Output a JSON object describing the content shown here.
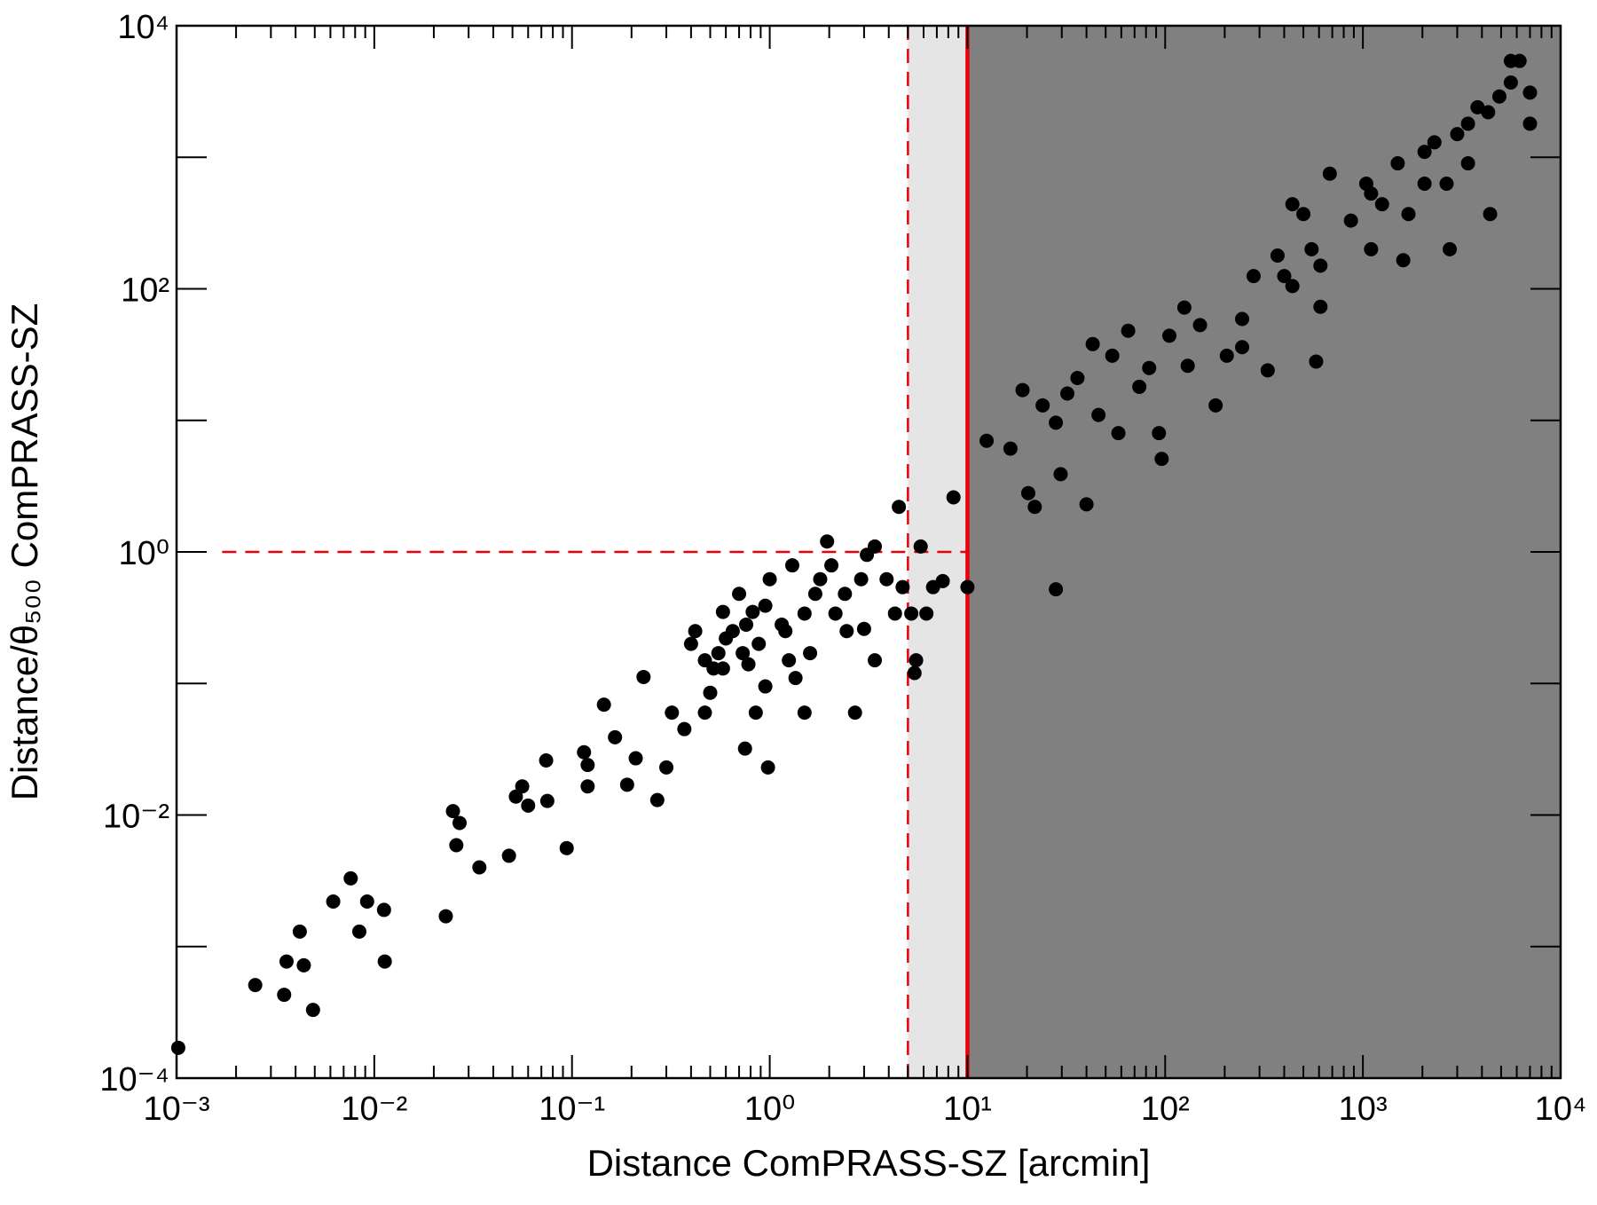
{
  "chart_data": {
    "type": "scatter",
    "xlabel": "Distance ComPRASS-SZ [arcmin]",
    "ylabel": "Distance/θ₅₀₀ ComPRASS-SZ",
    "xscale": "log",
    "yscale": "log",
    "xlim": [
      0.001,
      10000
    ],
    "ylim": [
      0.0001,
      10000
    ],
    "xticks": [
      {
        "value": 0.001,
        "label": "10⁻³"
      },
      {
        "value": 0.01,
        "label": "10⁻²"
      },
      {
        "value": 0.1,
        "label": "10⁻¹"
      },
      {
        "value": 1,
        "label": "10⁰"
      },
      {
        "value": 10,
        "label": "10¹"
      },
      {
        "value": 100,
        "label": "10²"
      },
      {
        "value": 1000,
        "label": "10³"
      },
      {
        "value": 10000,
        "label": "10⁴"
      }
    ],
    "yticks": [
      {
        "value": 0.0001,
        "label": "10⁻⁴"
      },
      {
        "value": 0.01,
        "label": "10⁻²"
      },
      {
        "value": 1,
        "label": "10⁰"
      },
      {
        "value": 100,
        "label": "10²"
      },
      {
        "value": 10000,
        "label": "10⁴"
      }
    ],
    "x_minor_ticks": [
      0.002,
      0.003,
      0.004,
      0.005,
      0.006,
      0.007,
      0.008,
      0.009,
      0.02,
      0.03,
      0.04,
      0.05,
      0.06,
      0.07,
      0.08,
      0.09,
      0.2,
      0.3,
      0.4,
      0.5,
      0.6,
      0.7,
      0.8,
      0.9,
      2,
      3,
      4,
      5,
      6,
      7,
      8,
      9,
      20,
      30,
      40,
      50,
      60,
      70,
      80,
      90,
      200,
      300,
      400,
      500,
      600,
      700,
      800,
      900,
      2000,
      3000,
      4000,
      5000,
      6000,
      7000,
      8000,
      9000
    ],
    "y_unlabeled_ticks": [
      0.001,
      0.1,
      10,
      1000
    ],
    "regions": [
      {
        "x0": 5,
        "x1": 10,
        "color": "#e5e5e5"
      },
      {
        "x0": 10,
        "x1": 10000,
        "color": "#808080"
      }
    ],
    "vlines": [
      {
        "x": 5,
        "color": "#e8000b",
        "dash": true
      },
      {
        "x": 10,
        "color": "#e8000b",
        "dash": false
      }
    ],
    "hlines": [
      {
        "y": 1,
        "x0": 0.0017,
        "x1": 10,
        "color": "#e8000b",
        "dash": true
      }
    ],
    "color": "#000000",
    "x": [
      0.00102,
      0.0025,
      0.0035,
      0.0036,
      0.0044,
      0.0042,
      0.0049,
      0.0062,
      0.0076,
      0.0084,
      0.0092,
      0.0112,
      0.0113,
      0.023,
      0.025,
      0.027,
      0.026,
      0.034,
      0.048,
      0.052,
      0.056,
      0.06,
      0.075,
      0.074,
      0.094,
      0.115,
      0.12,
      0.12,
      0.145,
      0.165,
      0.19,
      0.21,
      0.23,
      0.27,
      0.3,
      0.32,
      0.4,
      0.52,
      0.75,
      0.98,
      0.85,
      0.58,
      0.65,
      0.73,
      0.76,
      0.95,
      1.2,
      1.25,
      1.35,
      1.5,
      1.7,
      1.8,
      2.05,
      2.15,
      2.45,
      2.7,
      2.9,
      3.1,
      3.4,
      3.9,
      4.3,
      4.7,
      5.2,
      5.8,
      6.2,
      5.5,
      5.4,
      6.7,
      8.5,
      7.5,
      4.5,
      1.95,
      0.7,
      0.47,
      0.42,
      0.5,
      0.95,
      1.5,
      0.47,
      0.37,
      0.58,
      0.82,
      1.0,
      1.3,
      2.4,
      3.0,
      3.4,
      0.88,
      0.6,
      1.6,
      0.78,
      1.15,
      0.55,
      10.0,
      12.5,
      16.5,
      20.3,
      21.9,
      28,
      29.6,
      40,
      19,
      24,
      28,
      32,
      36,
      43,
      46,
      54,
      58,
      65,
      74,
      83,
      93,
      96,
      105,
      125,
      150,
      180,
      205,
      245,
      280,
      330,
      370,
      440,
      550,
      580,
      610,
      440,
      870,
      1040,
      1100,
      1250,
      1500,
      1700,
      2050,
      2300,
      2650,
      3000,
      3400,
      3800,
      4300,
      4900,
      5600,
      6200,
      7000,
      4400,
      2750,
      1600,
      680,
      500,
      400,
      245,
      130,
      610,
      1100,
      2050,
      3400,
      7000,
      5600
    ],
    "y": [
      0.00017,
      0.00051,
      0.00043,
      0.00077,
      0.00072,
      0.0013,
      0.00033,
      0.0022,
      0.0033,
      0.0013,
      0.0022,
      0.0019,
      0.00077,
      0.0017,
      0.0107,
      0.0087,
      0.0059,
      0.004,
      0.0049,
      0.0138,
      0.0165,
      0.0118,
      0.0128,
      0.026,
      0.0056,
      0.03,
      0.024,
      0.0165,
      0.069,
      0.039,
      0.017,
      0.027,
      0.112,
      0.013,
      0.023,
      0.06,
      0.2,
      0.13,
      0.032,
      0.023,
      0.06,
      0.35,
      0.25,
      0.17,
      0.28,
      0.39,
      0.25,
      0.15,
      0.11,
      0.34,
      0.48,
      0.62,
      0.79,
      0.34,
      0.25,
      0.06,
      0.62,
      0.95,
      1.1,
      0.62,
      0.34,
      0.54,
      0.34,
      1.1,
      0.34,
      0.15,
      0.12,
      0.54,
      2.6,
      0.6,
      2.2,
      1.2,
      0.48,
      0.15,
      0.25,
      0.085,
      0.095,
      0.06,
      0.06,
      0.045,
      0.13,
      0.35,
      0.62,
      0.79,
      0.48,
      0.26,
      0.15,
      0.2,
      0.22,
      0.17,
      0.14,
      0.28,
      0.17,
      0.54,
      7.0,
      6.1,
      2.8,
      2.2,
      0.52,
      3.9,
      2.3,
      17,
      13,
      9.6,
      16,
      21,
      38,
      11,
      31,
      8,
      48,
      18,
      25,
      8,
      5.1,
      44,
      72,
      53,
      13,
      31,
      59,
      125,
      24,
      179,
      105,
      200,
      28,
      150,
      440,
      330,
      630,
      200,
      440,
      900,
      370,
      1100,
      1300,
      630,
      1500,
      1800,
      2400,
      2200,
      2900,
      3700,
      5400,
      3100,
      370,
      200,
      165,
      750,
      370,
      125,
      36,
      26,
      73,
      530,
      630,
      900,
      1800,
      5400
    ]
  }
}
